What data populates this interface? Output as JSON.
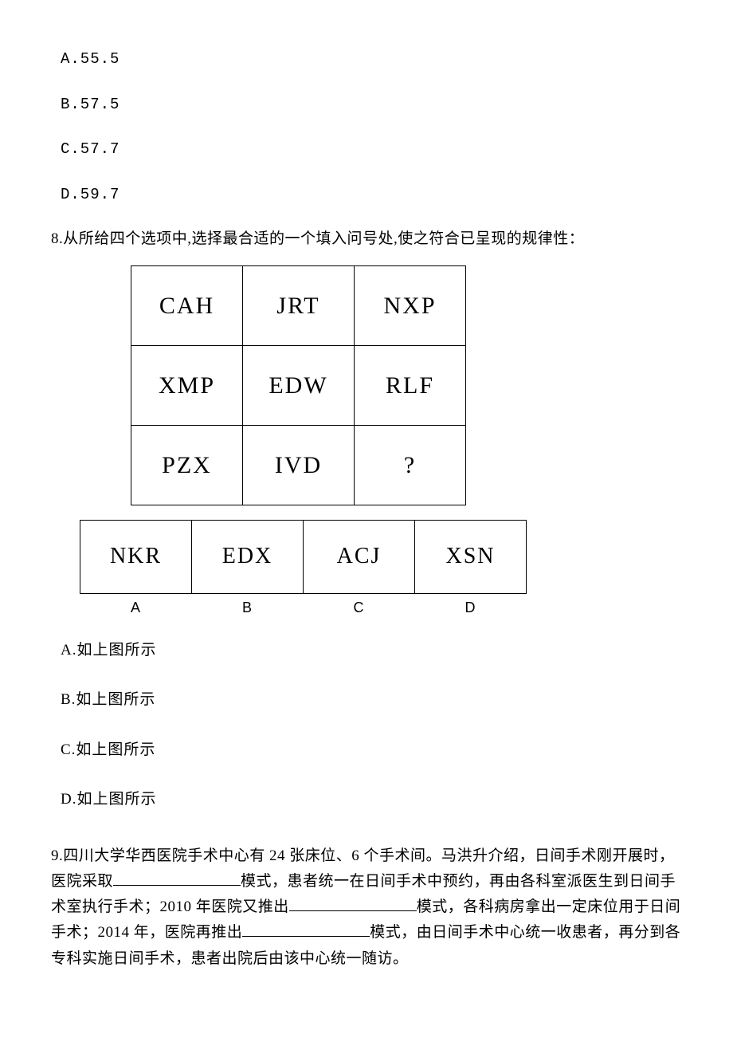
{
  "q7": {
    "options": {
      "a": "A.55.5",
      "b": "B.57.5",
      "c": "C.57.7",
      "d": "D.59.7"
    }
  },
  "q8": {
    "prompt": "8.从所给四个选项中,选择最合适的一个填入问号处,使之符合已呈现的规律性：",
    "grid": {
      "r0c0": "CAH",
      "r0c1": "JRT",
      "r0c2": "NXP",
      "r1c0": "XMP",
      "r1c1": "EDW",
      "r1c2": "RLF",
      "r2c0": "PZX",
      "r2c1": "IVD",
      "r2c2": "?"
    },
    "choices": {
      "a": "NKR",
      "b": "EDX",
      "c": "ACJ",
      "d": "XSN"
    },
    "choice_labels": {
      "a": "A",
      "b": "B",
      "c": "C",
      "d": "D"
    },
    "answers": {
      "a": "A.如上图所示",
      "b": "B.如上图所示",
      "c": "C.如上图所示",
      "d": "D.如上图所示"
    }
  },
  "q9": {
    "text_parts": {
      "p1": "9.四川大学华西医院手术中心有 24 张床位、6 个手术间。马洪升介绍，日间手术刚开展时，医院采取",
      "p2": "模式，患者统一在日间手术中预约，再由各科室派医生到日间手术室执行手术；2010 年医院又推出",
      "p3": "模式，各科病房拿出一定床位用于日间手术；2014 年，医院再推出",
      "p4": "模式，由日间手术中心统一收患者，再分到各专科实施日间手术，患者出院后由该中心统一随访。"
    },
    "blank_widths": {
      "b1": 160,
      "b2": 160,
      "b3": 160
    }
  },
  "styling": {
    "page_bg": "#ffffff",
    "text_color": "#000000",
    "border_color": "#000000",
    "grid_cell_font": "Times New Roman",
    "grid_cell_fontsize": 30,
    "option_cell_fontsize": 28,
    "body_fontsize": 19,
    "grid_cell_w": 140,
    "grid_cell_h": 100,
    "option_cell_h": 92
  }
}
